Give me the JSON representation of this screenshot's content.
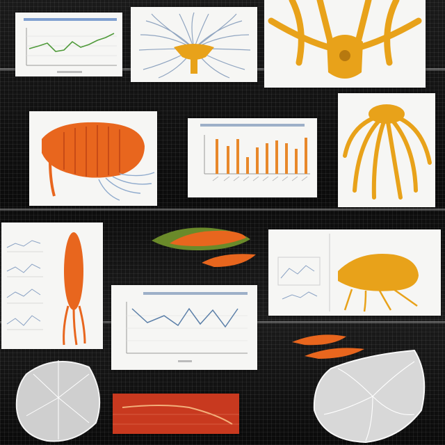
{
  "scene": {
    "background_color": "#111111",
    "panel_color": "#f6f6f4",
    "accent_orange": "#e8661e",
    "accent_gold": "#e8a21a",
    "accent_red": "#c8391f"
  },
  "panels": [
    {
      "name": "line-chart-panel-top-left",
      "kind": "line-chart",
      "line_color": "#4f9a3a"
    },
    {
      "name": "radial-diagram-panel",
      "kind": "anatomy-radial",
      "fill": "#e8a21a"
    },
    {
      "name": "golden-anatomy-panel",
      "kind": "anatomy-large",
      "fill": "#e8a21a"
    },
    {
      "name": "orange-organ-panel",
      "kind": "anatomy-organ",
      "fill": "#e8661e"
    },
    {
      "name": "bar-chart-panel",
      "kind": "bar-chart",
      "bar_color": "#e8882a"
    },
    {
      "name": "golden-tentacle-panel",
      "kind": "anatomy-tentacles",
      "fill": "#e8a21a"
    },
    {
      "name": "multi-chart-panel-left",
      "kind": "small-charts",
      "fill": "#e8661e"
    },
    {
      "name": "line-chart-panel-center",
      "kind": "line-chart",
      "line_color": "#5b7fa8"
    },
    {
      "name": "split-diagram-panel-right",
      "kind": "anatomy-split",
      "fill": "#e8a21a"
    },
    {
      "name": "red-chart-panel-bottom",
      "kind": "red-band",
      "fill": "#c8391f"
    }
  ],
  "loose_objects": [
    {
      "name": "green-orange-leaf-specimen",
      "fill": "#e8661e"
    },
    {
      "name": "orange-leaf-specimen-small",
      "fill": "#e8661e"
    },
    {
      "name": "orange-leaf-specimen-right",
      "fill": "#e8661e"
    },
    {
      "name": "grey-lung-specimen-left",
      "fill": "#dcdcdc"
    },
    {
      "name": "grey-lung-specimen-right",
      "fill": "#e4e4e4"
    }
  ]
}
